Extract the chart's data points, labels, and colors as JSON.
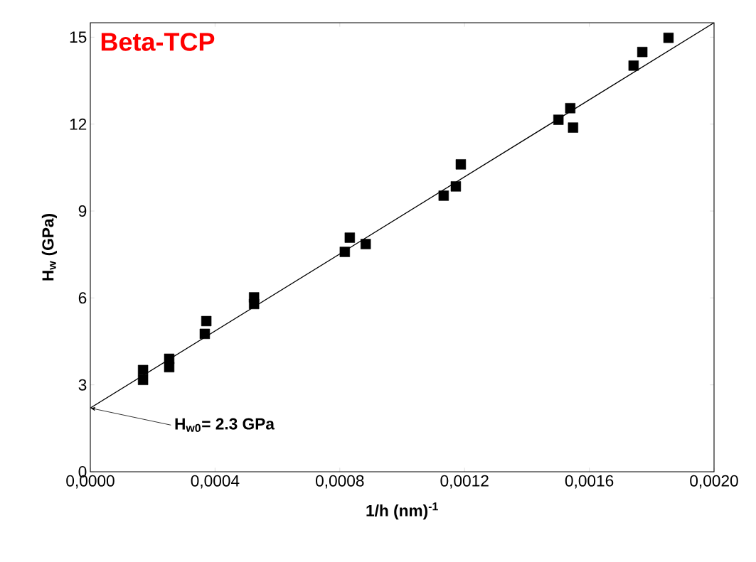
{
  "chart_data": {
    "type": "scatter",
    "title": "Beta-TCP",
    "xlabel": "1/h (nm)$^{-1}$",
    "ylabel": "H$_{w}$ (GPa)",
    "annotations": [
      {
        "text": "H$_{w0}$= 2.3 GPa",
        "x": 0,
        "y": 2.2
      }
    ],
    "xlim": [
      0,
      0.002
    ],
    "ylim": [
      0,
      15.5
    ],
    "xticks": [
      {
        "value": 0,
        "label": "0,0000"
      },
      {
        "value": 0.0004,
        "label": "0,0004"
      },
      {
        "value": 0.0008,
        "label": "0,0008"
      },
      {
        "value": 0.0012,
        "label": "0,0012"
      },
      {
        "value": 0.0016,
        "label": "0,0016"
      },
      {
        "value": 0.002,
        "label": "0,0020"
      }
    ],
    "yticks": [
      0,
      3,
      6,
      9,
      12,
      15
    ],
    "marker": "square",
    "series": [
      {
        "color": "#000000",
        "x": [
          0.000169,
          0.000169,
          0.000253,
          0.000253,
          0.000367,
          0.000372,
          0.000525,
          0.000525,
          0.000816,
          0.000832,
          0.000883,
          0.001133,
          0.001172,
          0.001188,
          0.001501,
          0.001539,
          0.001548,
          0.001742,
          0.00177,
          0.001854
        ],
        "values": [
          3.51,
          3.17,
          3.9,
          3.61,
          4.76,
          5.2,
          6.02,
          5.79,
          7.59,
          8.08,
          7.86,
          9.53,
          9.85,
          10.61,
          12.15,
          12.55,
          11.88,
          14.02,
          14.49,
          14.98
        ]
      },
      {
        "type": "line",
        "marker": "none",
        "color": "#000000",
        "x": [
          0,
          0.002
        ],
        "values": [
          2.2,
          15.5
        ]
      }
    ]
  }
}
